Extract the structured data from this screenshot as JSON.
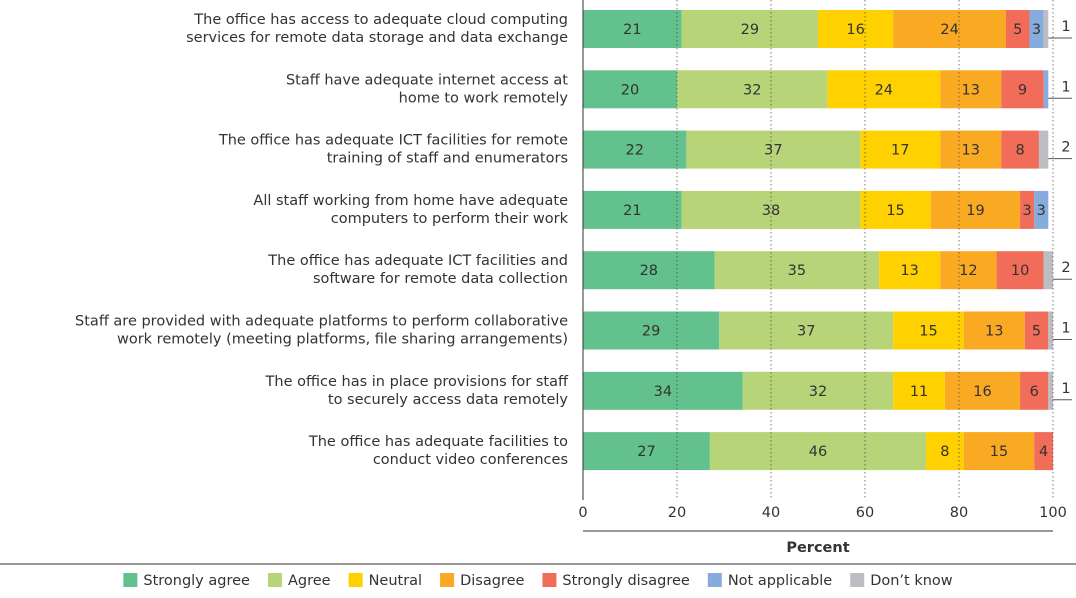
{
  "chart_data": {
    "type": "stacked-barh",
    "categories": [
      "The office has access to adequate cloud computing\nservices for remote data storage and data exchange",
      "Staff have adequate internet access at\nhome to work remotely",
      "The office has adequate ICT facilities for remote\ntraining of staff and enumerators",
      "All staff working from home have adequate\ncomputers to perform their work",
      "The office has adequate ICT facilities and\nsoftware for remote data collection",
      "Staff are provided with adequate platforms to perform collaborative\nwork remotely (meeting platforms, file sharing arrangements)",
      "The office has in place provisions for staff\nto securely access data remotely",
      "The office has adequate facilities to\nconduct video conferences"
    ],
    "series": [
      {
        "name": "Strongly agree",
        "color": "#62c18c",
        "values": [
          21,
          20,
          22,
          21,
          28,
          29,
          34,
          27
        ]
      },
      {
        "name": "Agree",
        "color": "#b8d479",
        "values": [
          29,
          32,
          37,
          38,
          35,
          37,
          32,
          46
        ]
      },
      {
        "name": "Neutral",
        "color": "#ffd100",
        "values": [
          16,
          24,
          17,
          15,
          13,
          15,
          11,
          8
        ]
      },
      {
        "name": "Disagree",
        "color": "#f9a922",
        "values": [
          24,
          13,
          13,
          19,
          12,
          13,
          16,
          15
        ]
      },
      {
        "name": "Strongly disagree",
        "color": "#f26c5a",
        "values": [
          5,
          9,
          8,
          3,
          10,
          5,
          6,
          4
        ]
      },
      {
        "name": "Not applicable",
        "color": "#86acdd",
        "values": [
          3,
          1,
          null,
          3,
          null,
          null,
          null,
          null
        ]
      },
      {
        "name": "Don’t know",
        "color": "#bdbdc4",
        "values": [
          1,
          null,
          2,
          null,
          2,
          1,
          1,
          null
        ]
      }
    ],
    "xlim": [
      0,
      100
    ],
    "xticks": [
      0,
      20,
      40,
      60,
      80,
      100
    ],
    "xlabel": "Percent",
    "grid": true,
    "legend": "bottom"
  }
}
